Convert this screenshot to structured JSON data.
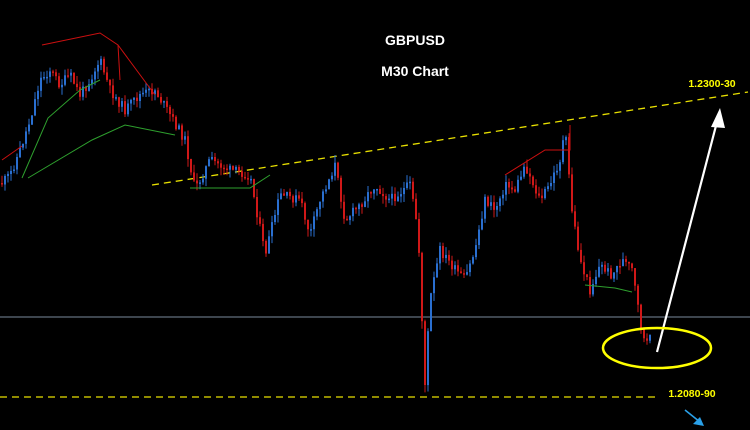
{
  "chart_data": {
    "type": "candlestick",
    "title": "GBPUSD",
    "subtitle": "M30 Chart",
    "colors": {
      "background": "#000000",
      "bull_candle": "#2a6fd0",
      "bear_candle": "#d01818",
      "level_line": "#e8e000",
      "horizontal_line": "#7a8a9c",
      "wave_lines_upper": "#cc1010",
      "wave_lines_lower": "#2ea02e",
      "arrow": "#ffffff",
      "small_arrow": "#2aa0e8",
      "ellipse": "#ffff00"
    },
    "annotations": {
      "target_label": "1.2300-30",
      "support_label": "1.2080-90"
    },
    "arrow_icon": "arrow-up-icon",
    "small_arrow_icon": "arrow-down-right-icon",
    "ellipse_icon": "highlight-ellipse"
  }
}
